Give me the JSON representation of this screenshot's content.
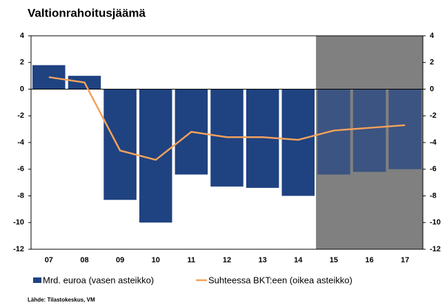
{
  "chart_data": {
    "type": "bar_line",
    "title": "Valtionrahoitusjäämä",
    "source": "Lähde: Tilastokeskus, VM",
    "categories": [
      "07",
      "08",
      "09",
      "10",
      "11",
      "12",
      "13",
      "14",
      "15",
      "16",
      "17"
    ],
    "forecast_start": "15",
    "series": [
      {
        "name": "Mrd. euroa (vasen asteikko)",
        "color": "#1f4281",
        "type": "bar",
        "values": [
          1.8,
          1.0,
          -8.3,
          -10.0,
          -6.4,
          -7.3,
          -7.4,
          -8.0,
          -6.4,
          -6.2,
          -6.0
        ]
      },
      {
        "name": "Suhteessa BKT:een (oikea asteikko)",
        "color": "#f4a25a",
        "type": "line",
        "axis": "y2",
        "values": [
          0.9,
          0.5,
          -4.6,
          -5.3,
          -3.2,
          -3.6,
          -3.6,
          -3.8,
          -3.1,
          -2.9,
          -2.7
        ]
      }
    ],
    "ylim": [
      -12,
      4
    ],
    "yticks": [
      -12,
      -10,
      -8,
      -6,
      -4,
      -2,
      0,
      2,
      4
    ],
    "y2lim": [
      -12,
      4
    ],
    "y2ticks": [
      -12,
      -10,
      -8,
      -6,
      -4,
      -2,
      0,
      2,
      4
    ]
  }
}
